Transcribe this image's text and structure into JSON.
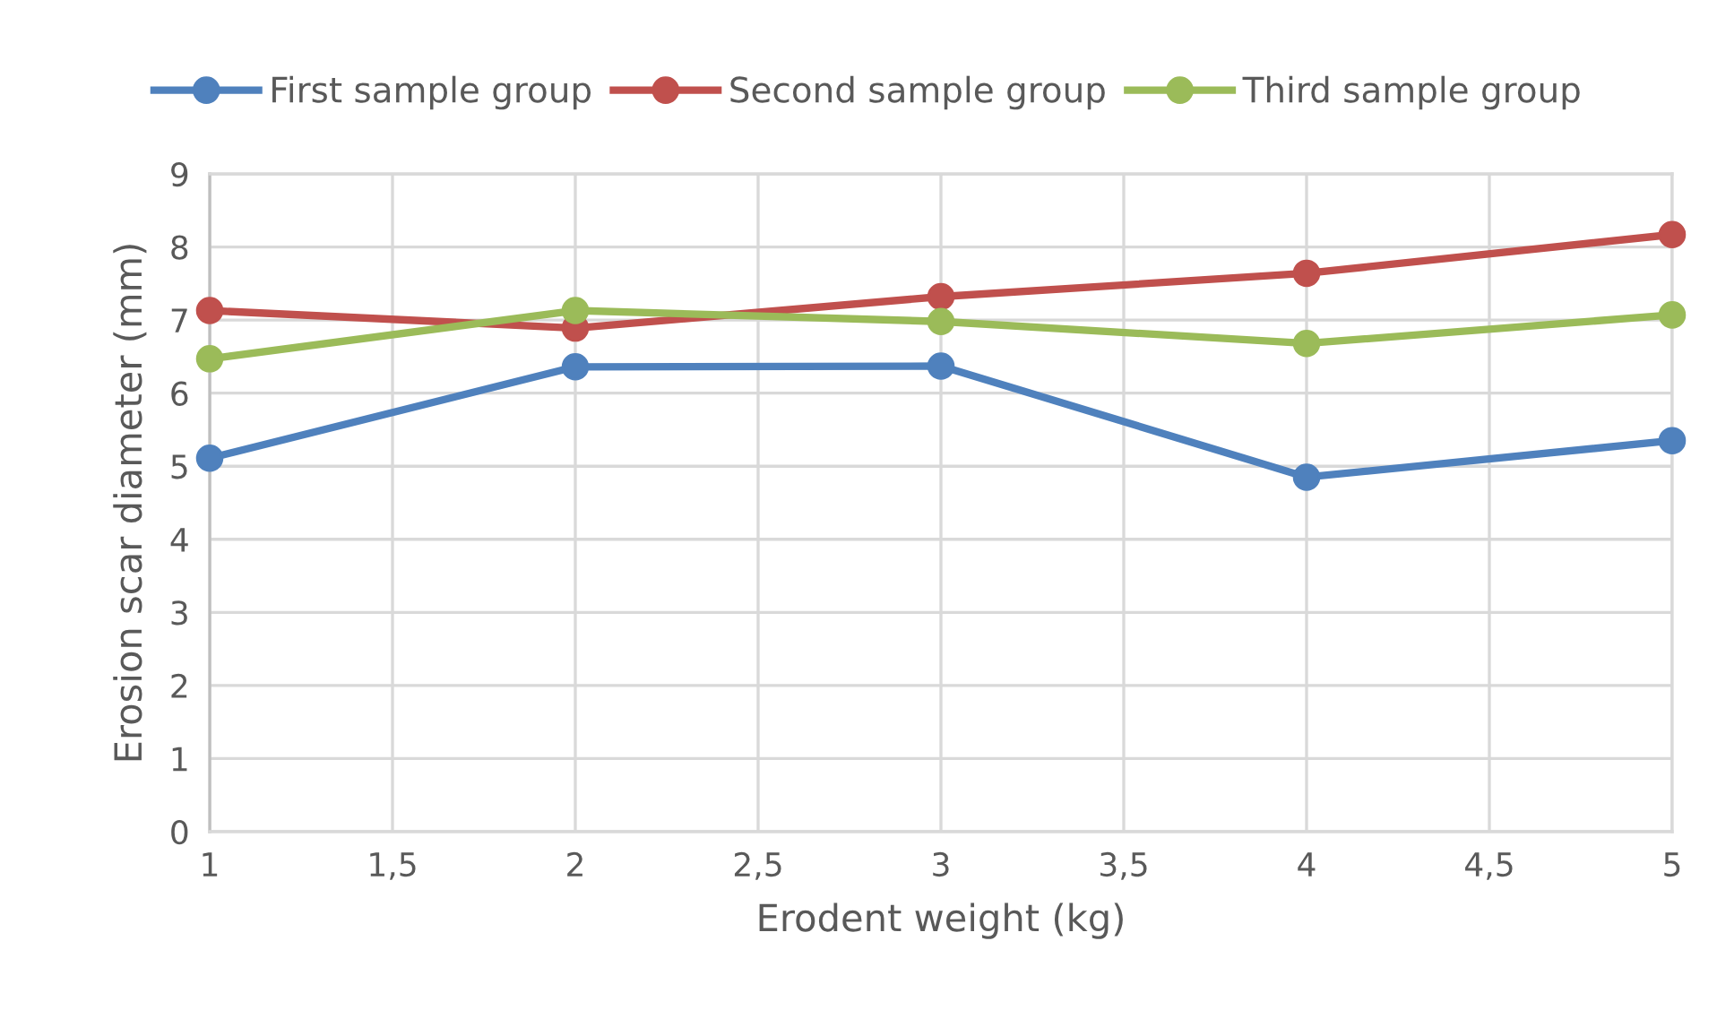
{
  "chart_data": {
    "type": "line",
    "xlabel": "Erodent weight (kg)",
    "ylabel": "Erosion scar diameter (mm)",
    "x": [
      1,
      2,
      3,
      4,
      5
    ],
    "series": [
      {
        "name": "First sample group",
        "color": "#4f81bd",
        "values": [
          5.11,
          6.36,
          6.37,
          4.85,
          5.35
        ]
      },
      {
        "name": "Second sample group",
        "color": "#c0504d",
        "values": [
          7.13,
          6.89,
          7.32,
          7.64,
          8.17
        ]
      },
      {
        "name": "Third sample group",
        "color": "#9bbb59",
        "values": [
          6.47,
          7.13,
          6.98,
          6.68,
          7.07
        ]
      }
    ],
    "xlim": [
      1,
      5
    ],
    "xticks": [
      1,
      {
        "value": 1.5,
        "label": "1,5"
      },
      2,
      {
        "value": 2.5,
        "label": "2,5"
      },
      3,
      {
        "value": 3.5,
        "label": "3,5"
      },
      4,
      {
        "value": 4.5,
        "label": "4,5"
      },
      5
    ],
    "ylim": [
      0,
      9
    ],
    "yticks": [
      0,
      1,
      2,
      3,
      4,
      5,
      6,
      7,
      8,
      9
    ],
    "grid": true,
    "legend": "top",
    "marker": "circle",
    "line_style": "solid"
  }
}
